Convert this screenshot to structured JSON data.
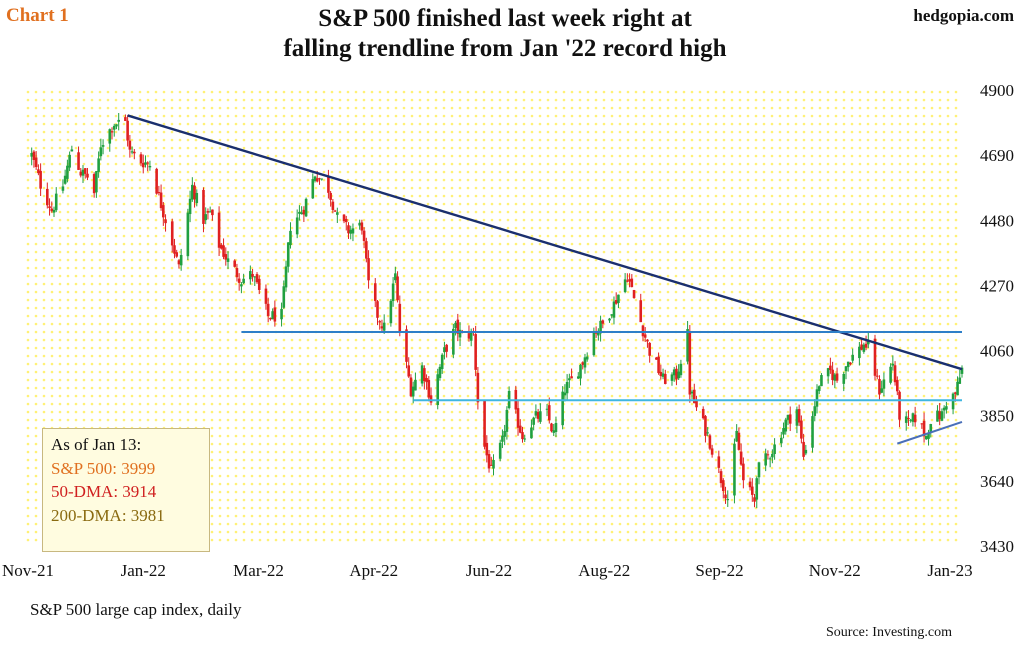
{
  "header": {
    "chart_label": "Chart 1",
    "site": "hedgopia.com",
    "title_line1": "S&P 500 finished last week right at",
    "title_line2": "falling trendline from Jan '22 record high"
  },
  "footer": {
    "caption": "S&P 500 large cap index, daily",
    "source": "Source: Investing.com"
  },
  "info_box": {
    "heading": "As of Jan 13:",
    "sp500": "S&P 500: 3999",
    "dma50": "50-DMA: 3914",
    "dma200": "200-DMA: 3981"
  },
  "colors": {
    "up": "#20a040",
    "down": "#e02020",
    "trend": "#1a2f6e",
    "resistance": "#2e7fc8",
    "support": "#3fb6e0",
    "minor_trend": "#4a6fb8",
    "background_dots": "#fff176",
    "info_heading": "#111111",
    "info_sp500": "#e07020",
    "info_dma50": "#d02020",
    "info_dma200": "#8a6a10"
  },
  "chart_data": {
    "type": "candlestick",
    "title": "S&P 500 finished last week right at falling trendline from Jan '22 record high",
    "xlabel": "",
    "ylabel": "",
    "x_ticks": [
      "Nov-21",
      "Jan-22",
      "Mar-22",
      "Apr-22",
      "Jun-22",
      "Aug-22",
      "Sep-22",
      "Nov-22",
      "Jan-23"
    ],
    "y_ticks": [
      3430,
      3640,
      3850,
      4060,
      4270,
      4480,
      4690,
      4900
    ],
    "ylim": [
      3430,
      4900
    ],
    "grid": "dotted",
    "x_range": [
      "2021-11-19",
      "2023-01-13"
    ],
    "series": [
      {
        "name": "S&P 500",
        "points": [
          [
            "2021-11-22",
            4690
          ],
          [
            "2021-11-26",
            4595
          ],
          [
            "2021-12-01",
            4513
          ],
          [
            "2021-12-06",
            4592
          ],
          [
            "2021-12-10",
            4712
          ],
          [
            "2021-12-14",
            4634
          ],
          [
            "2021-12-17",
            4620
          ],
          [
            "2021-12-20",
            4568
          ],
          [
            "2021-12-23",
            4725
          ],
          [
            "2021-12-29",
            4793
          ],
          [
            "2022-01-03",
            4796
          ],
          [
            "2022-01-05",
            4700
          ],
          [
            "2022-01-10",
            4670
          ],
          [
            "2022-01-14",
            4662
          ],
          [
            "2022-01-19",
            4532
          ],
          [
            "2022-01-24",
            4410
          ],
          [
            "2022-01-27",
            4326
          ],
          [
            "2022-02-02",
            4589
          ],
          [
            "2022-02-07",
            4483
          ],
          [
            "2022-02-10",
            4504
          ],
          [
            "2022-02-14",
            4401
          ],
          [
            "2022-02-18",
            4348
          ],
          [
            "2022-02-24",
            4288
          ],
          [
            "2022-03-01",
            4306
          ],
          [
            "2022-03-08",
            4170
          ],
          [
            "2022-03-14",
            4173
          ],
          [
            "2022-03-18",
            4463
          ],
          [
            "2022-03-24",
            4520
          ],
          [
            "2022-03-29",
            4631
          ],
          [
            "2022-04-04",
            4582
          ],
          [
            "2022-04-08",
            4488
          ],
          [
            "2022-04-13",
            4447
          ],
          [
            "2022-04-19",
            4463
          ],
          [
            "2022-04-22",
            4272
          ],
          [
            "2022-04-26",
            4175
          ],
          [
            "2022-04-29",
            4132
          ],
          [
            "2022-05-04",
            4300
          ],
          [
            "2022-05-06",
            4123
          ],
          [
            "2022-05-11",
            3935
          ],
          [
            "2022-05-16",
            4008
          ],
          [
            "2022-05-20",
            3901
          ],
          [
            "2022-05-26",
            4057
          ],
          [
            "2022-05-31",
            4132
          ],
          [
            "2022-06-03",
            4108
          ],
          [
            "2022-06-08",
            4115
          ],
          [
            "2022-06-10",
            3901
          ],
          [
            "2022-06-13",
            3750
          ],
          [
            "2022-06-16",
            3667
          ],
          [
            "2022-06-21",
            3765
          ],
          [
            "2022-06-24",
            3912
          ],
          [
            "2022-06-30",
            3785
          ],
          [
            "2022-07-06",
            3845
          ],
          [
            "2022-07-11",
            3855
          ],
          [
            "2022-07-14",
            3790
          ],
          [
            "2022-07-19",
            3937
          ],
          [
            "2022-07-22",
            3962
          ],
          [
            "2022-07-27",
            4024
          ],
          [
            "2022-08-01",
            4119
          ],
          [
            "2022-08-05",
            4145
          ],
          [
            "2022-08-10",
            4210
          ],
          [
            "2022-08-16",
            4305
          ],
          [
            "2022-08-19",
            4228
          ],
          [
            "2022-08-23",
            4128
          ],
          [
            "2022-08-26",
            4058
          ],
          [
            "2022-09-01",
            3966
          ],
          [
            "2022-09-07",
            3980
          ],
          [
            "2022-09-12",
            4110
          ],
          [
            "2022-09-13",
            3932
          ],
          [
            "2022-09-16",
            3873
          ],
          [
            "2022-09-21",
            3789
          ],
          [
            "2022-09-27",
            3647
          ],
          [
            "2022-09-30",
            3585
          ],
          [
            "2022-10-04",
            3790
          ],
          [
            "2022-10-07",
            3639
          ],
          [
            "2022-10-12",
            3577
          ],
          [
            "2022-10-13",
            3669
          ],
          [
            "2022-10-18",
            3719
          ],
          [
            "2022-10-21",
            3752
          ],
          [
            "2022-10-26",
            3830
          ],
          [
            "2022-10-31",
            3871
          ],
          [
            "2022-11-03",
            3719
          ],
          [
            "2022-11-10",
            3956
          ],
          [
            "2022-11-15",
            3991
          ],
          [
            "2022-11-18",
            3965
          ],
          [
            "2022-11-23",
            4027
          ],
          [
            "2022-11-30",
            4080
          ],
          [
            "2022-12-02",
            4071
          ],
          [
            "2022-12-07",
            3933
          ],
          [
            "2022-12-13",
            4020
          ],
          [
            "2022-12-16",
            3852
          ],
          [
            "2022-12-20",
            3821
          ],
          [
            "2022-12-23",
            3845
          ],
          [
            "2022-12-28",
            3783
          ],
          [
            "2022-12-30",
            3840
          ],
          [
            "2023-01-04",
            3853
          ],
          [
            "2023-01-06",
            3895
          ],
          [
            "2023-01-10",
            3919
          ],
          [
            "2023-01-13",
            3999
          ]
        ]
      }
    ],
    "annotations": [
      {
        "name": "Falling trendline",
        "from": [
          "2022-01-04",
          4818
        ],
        "to": [
          "2023-01-13",
          4000
        ]
      },
      {
        "name": "Horizontal resistance",
        "value": 4120,
        "from": "2022-02-24",
        "to": "2023-01-13"
      },
      {
        "name": "Horizontal support",
        "value": 3900,
        "from": "2022-05-12",
        "to": "2023-01-13"
      },
      {
        "name": "Rising support",
        "from": [
          "2022-12-15",
          3760
        ],
        "to": [
          "2023-01-13",
          3830
        ]
      }
    ]
  }
}
